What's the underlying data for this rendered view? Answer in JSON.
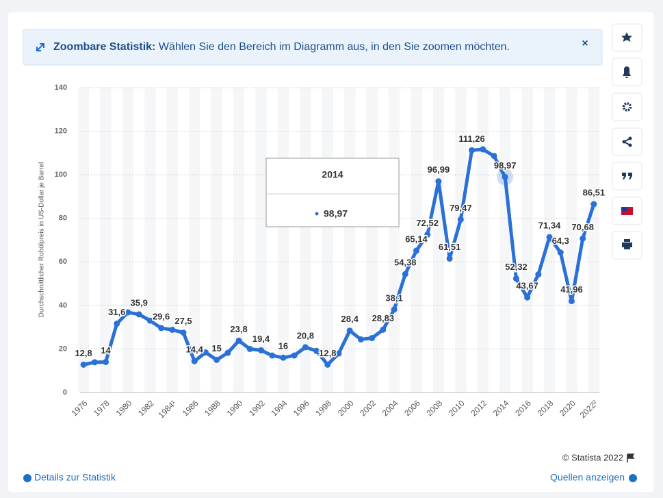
{
  "banner": {
    "title": "Zoombare Statistik:",
    "text": "Wählen Sie den Bereich im Diagramm aus, in den Sie zoomen möchten.",
    "close": "×"
  },
  "footer": {
    "copyright": "© Statista 2022",
    "details": "Details zur Statistik",
    "sources": "Quellen anzeigen"
  },
  "chart_data": {
    "type": "line",
    "y_label": "Durchschnittlicher Rohölpreis in US-Dollar je Barrel",
    "categories": [
      "1976",
      null,
      "1978",
      null,
      "1980",
      null,
      "1982",
      null,
      "1984¹",
      null,
      "1986",
      null,
      "1988",
      null,
      "1990",
      null,
      "1992",
      null,
      "1994",
      null,
      "1996",
      null,
      "1998",
      null,
      "2000",
      null,
      "2002",
      null,
      "2004",
      null,
      "2006",
      null,
      "2008",
      null,
      "2010",
      null,
      "2012",
      null,
      "2014",
      null,
      "2016",
      null,
      "2018",
      null,
      "2020",
      null,
      "2022²"
    ],
    "values": [
      12.8,
      13.9,
      14,
      31.6,
      36.8,
      35.9,
      33,
      29.6,
      28.8,
      27.5,
      14.4,
      18.4,
      15,
      18.2,
      23.8,
      20,
      19.4,
      17,
      16,
      17,
      20.8,
      19.1,
      12.8,
      17.9,
      28.4,
      24.4,
      25,
      28.83,
      38.1,
      54.38,
      65.14,
      72.52,
      96.99,
      61.51,
      79.47,
      111.26,
      111.67,
      108.66,
      98.97,
      52.32,
      43.67,
      54.25,
      71.34,
      64.3,
      41.96,
      70.68,
      86.51
    ],
    "value_labels": [
      "12,8",
      null,
      "14",
      "31,6",
      null,
      "35,9",
      null,
      "29,6",
      null,
      "27,5",
      "14,4",
      null,
      "15",
      null,
      "23,8",
      null,
      "19,4",
      null,
      "16",
      null,
      "20,8",
      null,
      "12,8",
      null,
      "28,4",
      null,
      null,
      "28,83",
      "38,1",
      "54,38",
      "65,14",
      "72,52",
      "96,99",
      "61,51",
      "79,47",
      "111,26",
      null,
      null,
      "98,97",
      "52,32",
      "43,67",
      null,
      "71,34",
      "64,3",
      "41,96",
      "70,68",
      "86,51"
    ],
    "color": "#2a70d6",
    "ylim": [
      0,
      140
    ],
    "yticks": [
      0,
      20,
      40,
      60,
      80,
      100,
      120,
      140
    ],
    "grid": true
  }
}
